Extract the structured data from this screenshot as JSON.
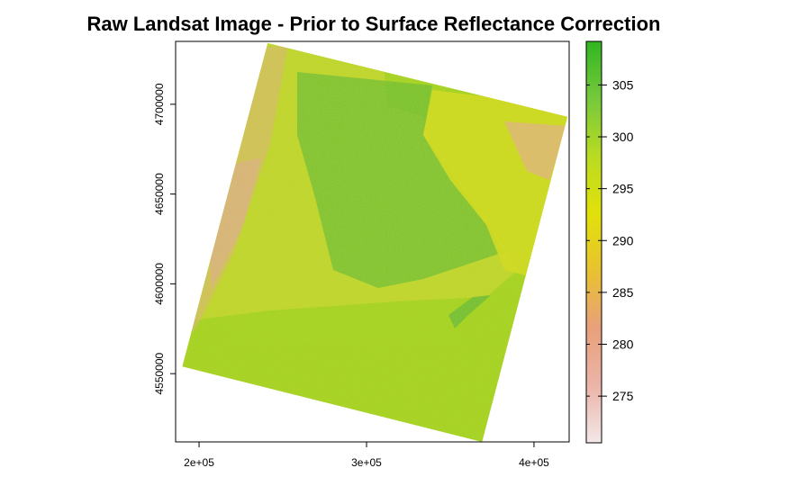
{
  "chart_data": {
    "type": "heatmap",
    "title": "Raw Landsat Image - Prior to Surface Reflectance Correction",
    "xlabel": "",
    "ylabel": "",
    "x_ticks": [
      {
        "value": 200000,
        "label": "2e+05"
      },
      {
        "value": 300000,
        "label": "3e+05"
      },
      {
        "value": 400000,
        "label": "4e+05"
      }
    ],
    "y_ticks": [
      {
        "value": 4550000,
        "label": "4550000"
      },
      {
        "value": 4600000,
        "label": "4600000"
      },
      {
        "value": 4650000,
        "label": "4650000"
      },
      {
        "value": 4700000,
        "label": "4700000"
      }
    ],
    "xlim": [
      186000,
      421000
    ],
    "ylim": [
      4512000,
      4735000
    ],
    "raster_corners": [
      {
        "x": 241000,
        "y": 4734000
      },
      {
        "x": 420000,
        "y": 4693000
      },
      {
        "x": 369000,
        "y": 4512000
      },
      {
        "x": 190000,
        "y": 4554000
      }
    ],
    "colorbar": {
      "min": 270.5,
      "max": 309.2,
      "ticks": [
        275,
        280,
        285,
        290,
        295,
        300,
        305
      ],
      "colors": [
        "#f3e8e8",
        "#ebb4a8",
        "#e8a07b",
        "#e8c230",
        "#e1e10b",
        "#b9db22",
        "#76c93c",
        "#32b521"
      ]
    },
    "grid": false,
    "legend_position": "right"
  }
}
